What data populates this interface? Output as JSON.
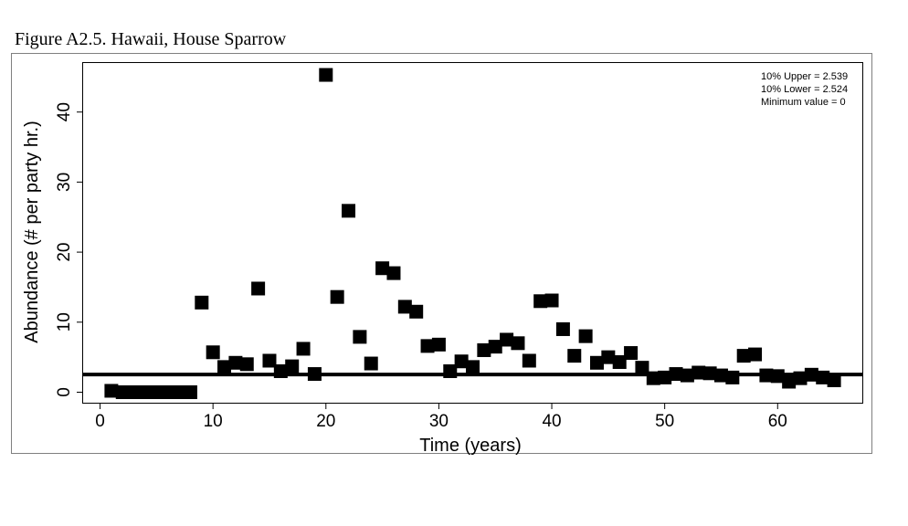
{
  "caption": "Figure A2.5. Hawaii, House Sparrow",
  "chart_data": {
    "type": "scatter",
    "title": "",
    "xlabel": "Time (years)",
    "ylabel": "Abundance (# per party hr.)",
    "xlim": [
      -1.5,
      67.5
    ],
    "ylim": [
      -1.5,
      47.0
    ],
    "xticks": [
      0,
      10,
      20,
      30,
      40,
      50,
      60
    ],
    "yticks": [
      0,
      10,
      20,
      30,
      40
    ],
    "grid": false,
    "legend": "none",
    "reference_line": {
      "y": 2.53
    },
    "annotations": [
      "10% Upper =  2.539",
      "10% Lower =  2.524",
      "Minimum value =  0"
    ],
    "marker_color": "#000000",
    "x": [
      1,
      2,
      3,
      4,
      5,
      6,
      7,
      8,
      9,
      10,
      11,
      12,
      13,
      14,
      15,
      16,
      17,
      18,
      19,
      20,
      21,
      22,
      23,
      24,
      25,
      26,
      27,
      28,
      29,
      30,
      31,
      32,
      33,
      34,
      35,
      36,
      37,
      38,
      39,
      40,
      41,
      42,
      43,
      44,
      45,
      46,
      47,
      48,
      49,
      50,
      51,
      52,
      53,
      54,
      55,
      56,
      57,
      58,
      59,
      60,
      61,
      62,
      63,
      64,
      65
    ],
    "y": [
      0.2,
      0.0,
      0.0,
      0.0,
      0.0,
      0.0,
      0.0,
      0.0,
      12.8,
      5.7,
      3.6,
      4.2,
      4.0,
      14.8,
      4.5,
      3.0,
      3.7,
      6.2,
      2.6,
      45.3,
      13.6,
      25.9,
      7.9,
      4.1,
      17.7,
      17.0,
      12.2,
      11.5,
      6.6,
      6.8,
      3.0,
      4.4,
      3.6,
      6.0,
      6.5,
      7.5,
      7.0,
      4.5,
      13.0,
      13.1,
      9.0,
      5.2,
      8.0,
      4.2,
      5.0,
      4.3,
      5.6,
      3.5,
      2.0,
      2.1,
      2.6,
      2.4,
      2.8,
      2.7,
      2.4,
      2.1,
      5.2,
      5.4,
      2.4,
      2.3,
      1.5,
      2.0,
      2.5,
      2.1,
      1.7
    ]
  }
}
